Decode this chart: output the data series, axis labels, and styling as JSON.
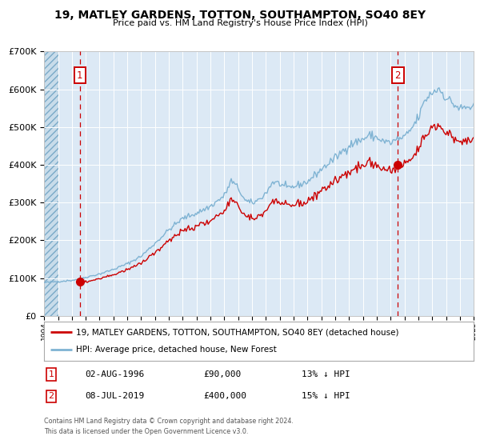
{
  "title": "19, MATLEY GARDENS, TOTTON, SOUTHAMPTON, SO40 8EY",
  "subtitle": "Price paid vs. HM Land Registry's House Price Index (HPI)",
  "hpi_legend": "HPI: Average price, detached house, New Forest",
  "property_legend": "19, MATLEY GARDENS, TOTTON, SOUTHAMPTON, SO40 8EY (detached house)",
  "transaction1_date": "02-AUG-1996",
  "transaction1_price": 90000,
  "transaction1_note": "13% ↓ HPI",
  "transaction2_date": "08-JUL-2019",
  "transaction2_price": 400000,
  "transaction2_note": "15% ↓ HPI",
  "footnote1": "Contains HM Land Registry data © Crown copyright and database right 2024.",
  "footnote2": "This data is licensed under the Open Government Licence v3.0.",
  "ylim_min": 0,
  "ylim_max": 700000,
  "ytick_step": 100000,
  "start_year": 1994,
  "end_year": 2025,
  "hpi_color": "#7fb3d3",
  "property_color": "#cc0000",
  "vline_color": "#cc0000",
  "bg_color": "#dce9f5",
  "grid_color": "#ffffff",
  "marker_color": "#cc0000",
  "label_box_color": "#cc0000",
  "transaction1_x": 1996.58,
  "transaction2_x": 2019.52
}
